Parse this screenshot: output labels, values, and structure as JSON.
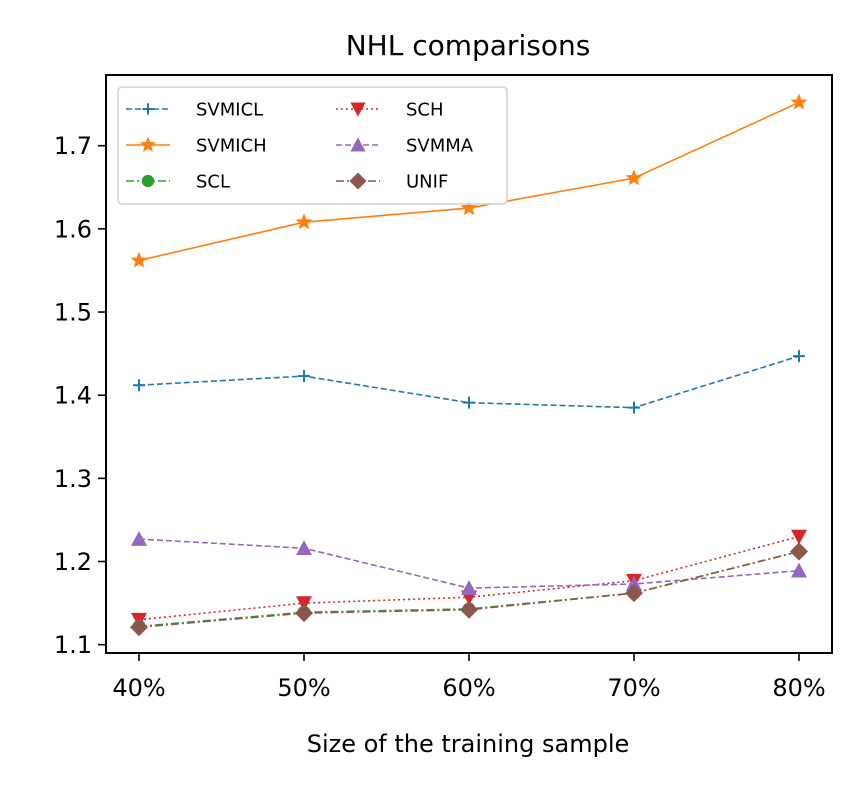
{
  "chart_data": {
    "type": "line",
    "title": "NHL comparisons",
    "xlabel": "Size of the training sample",
    "ylabel": "",
    "categories": [
      "40%",
      "50%",
      "60%",
      "70%",
      "80%"
    ],
    "ylim": [
      1.09,
      1.785
    ],
    "yticks": [
      1.1,
      1.2,
      1.3,
      1.4,
      1.5,
      1.6,
      1.7
    ],
    "ytick_labels": [
      "1.1",
      "1.2",
      "1.3",
      "1.4",
      "1.5",
      "1.6",
      "1.7"
    ],
    "legend_position": "upper-left",
    "series": [
      {
        "name": "SVMICL",
        "values": [
          1.412,
          1.423,
          1.391,
          1.385,
          1.447
        ],
        "color": "#1f77b4",
        "marker": "plus",
        "dash": "dashed"
      },
      {
        "name": "SVMICH",
        "values": [
          1.562,
          1.608,
          1.625,
          1.661,
          1.752
        ],
        "color": "#ff7f0e",
        "marker": "star",
        "dash": "solid"
      },
      {
        "name": "SCL",
        "values": [
          1.122,
          1.139,
          1.143,
          1.162,
          1.212
        ],
        "color": "#2ca02c",
        "marker": "circle",
        "dash": "dashdot"
      },
      {
        "name": "SCH",
        "values": [
          1.13,
          1.15,
          1.157,
          1.177,
          1.23
        ],
        "color": "#d62728",
        "marker": "triangle-down",
        "dash": "dotted"
      },
      {
        "name": "SVMMA",
        "values": [
          1.227,
          1.216,
          1.168,
          1.173,
          1.189
        ],
        "color": "#9467bd",
        "marker": "triangle-up",
        "dash": "dashed"
      },
      {
        "name": "UNIF",
        "values": [
          1.121,
          1.138,
          1.142,
          1.162,
          1.212
        ],
        "color": "#8c564b",
        "marker": "diamond",
        "dash": "dashdot"
      }
    ]
  }
}
